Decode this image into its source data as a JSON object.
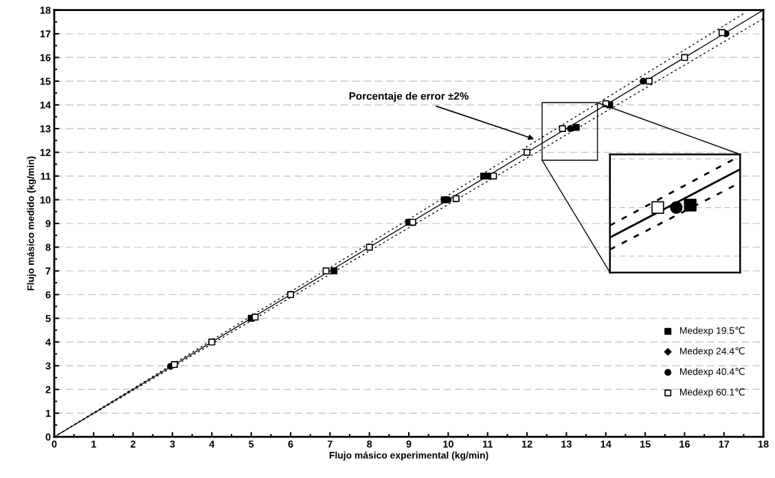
{
  "chart_data": {
    "type": "scatter",
    "xlabel": "Flujo másico experimental (kg/min)",
    "ylabel": "Flujo másico medido (kg/min)",
    "xlim": [
      0,
      18
    ],
    "ylim": [
      0,
      18
    ],
    "xticks": [
      0,
      1,
      2,
      3,
      4,
      5,
      6,
      7,
      8,
      9,
      10,
      11,
      12,
      13,
      14,
      15,
      16,
      17,
      18
    ],
    "yticks": [
      0,
      1,
      2,
      3,
      4,
      5,
      6,
      7,
      8,
      9,
      10,
      11,
      12,
      13,
      14,
      15,
      16,
      17,
      18
    ],
    "grid": "y",
    "legend": "bottom right",
    "annotations": [
      {
        "text": "Porcentaje de error ±2%",
        "x": 12.18,
        "y": 12.56
      }
    ],
    "series": [
      {
        "type": "line",
        "color": "#000000",
        "line_style": "solid",
        "marker": "none",
        "x": [
          0,
          18
        ],
        "values": [
          0,
          18
        ]
      },
      {
        "type": "line",
        "color": "#000000",
        "line_style": "dotted",
        "marker": "none",
        "x": [
          0,
          17.5
        ],
        "values": [
          0,
          17.85
        ]
      },
      {
        "type": "line",
        "color": "#000000",
        "line_style": "dotted",
        "marker": "none",
        "x": [
          0,
          18
        ],
        "values": [
          0,
          17.64
        ]
      },
      {
        "name": "Medexp 19.5℃",
        "color": "#000000",
        "marker": "square",
        "x": [
          5.0,
          7.1,
          9.0,
          9.9,
          10.9,
          11.0,
          13.25,
          14.1
        ],
        "values": [
          5.0,
          7.0,
          9.05,
          10.0,
          11.0,
          11.0,
          13.05,
          14.0
        ]
      },
      {
        "name": "Medexp 24.4℃",
        "color": "#000000",
        "marker": "diamond"
      },
      {
        "name": "Medexp 40.4℃",
        "color": "#000000",
        "marker": "circle",
        "x": [
          2.95,
          10.0,
          13.1,
          14.95,
          17.05
        ],
        "values": [
          2.97,
          10.0,
          13.0,
          15.0,
          17.0
        ]
      },
      {
        "name": "Medexp 60.1℃",
        "color": "#ffffff",
        "marker": "square",
        "x": [
          3.05,
          4.0,
          5.1,
          6.0,
          6.9,
          8.0,
          9.1,
          10.2,
          11.15,
          12.0,
          12.9,
          14.0,
          15.1,
          16.0,
          16.95
        ],
        "values": [
          3.05,
          4.0,
          5.05,
          6.0,
          7.0,
          8.0,
          9.05,
          10.05,
          11.0,
          12.0,
          13.0,
          14.05,
          15.0,
          16.0,
          17.05
        ]
      }
    ]
  }
}
